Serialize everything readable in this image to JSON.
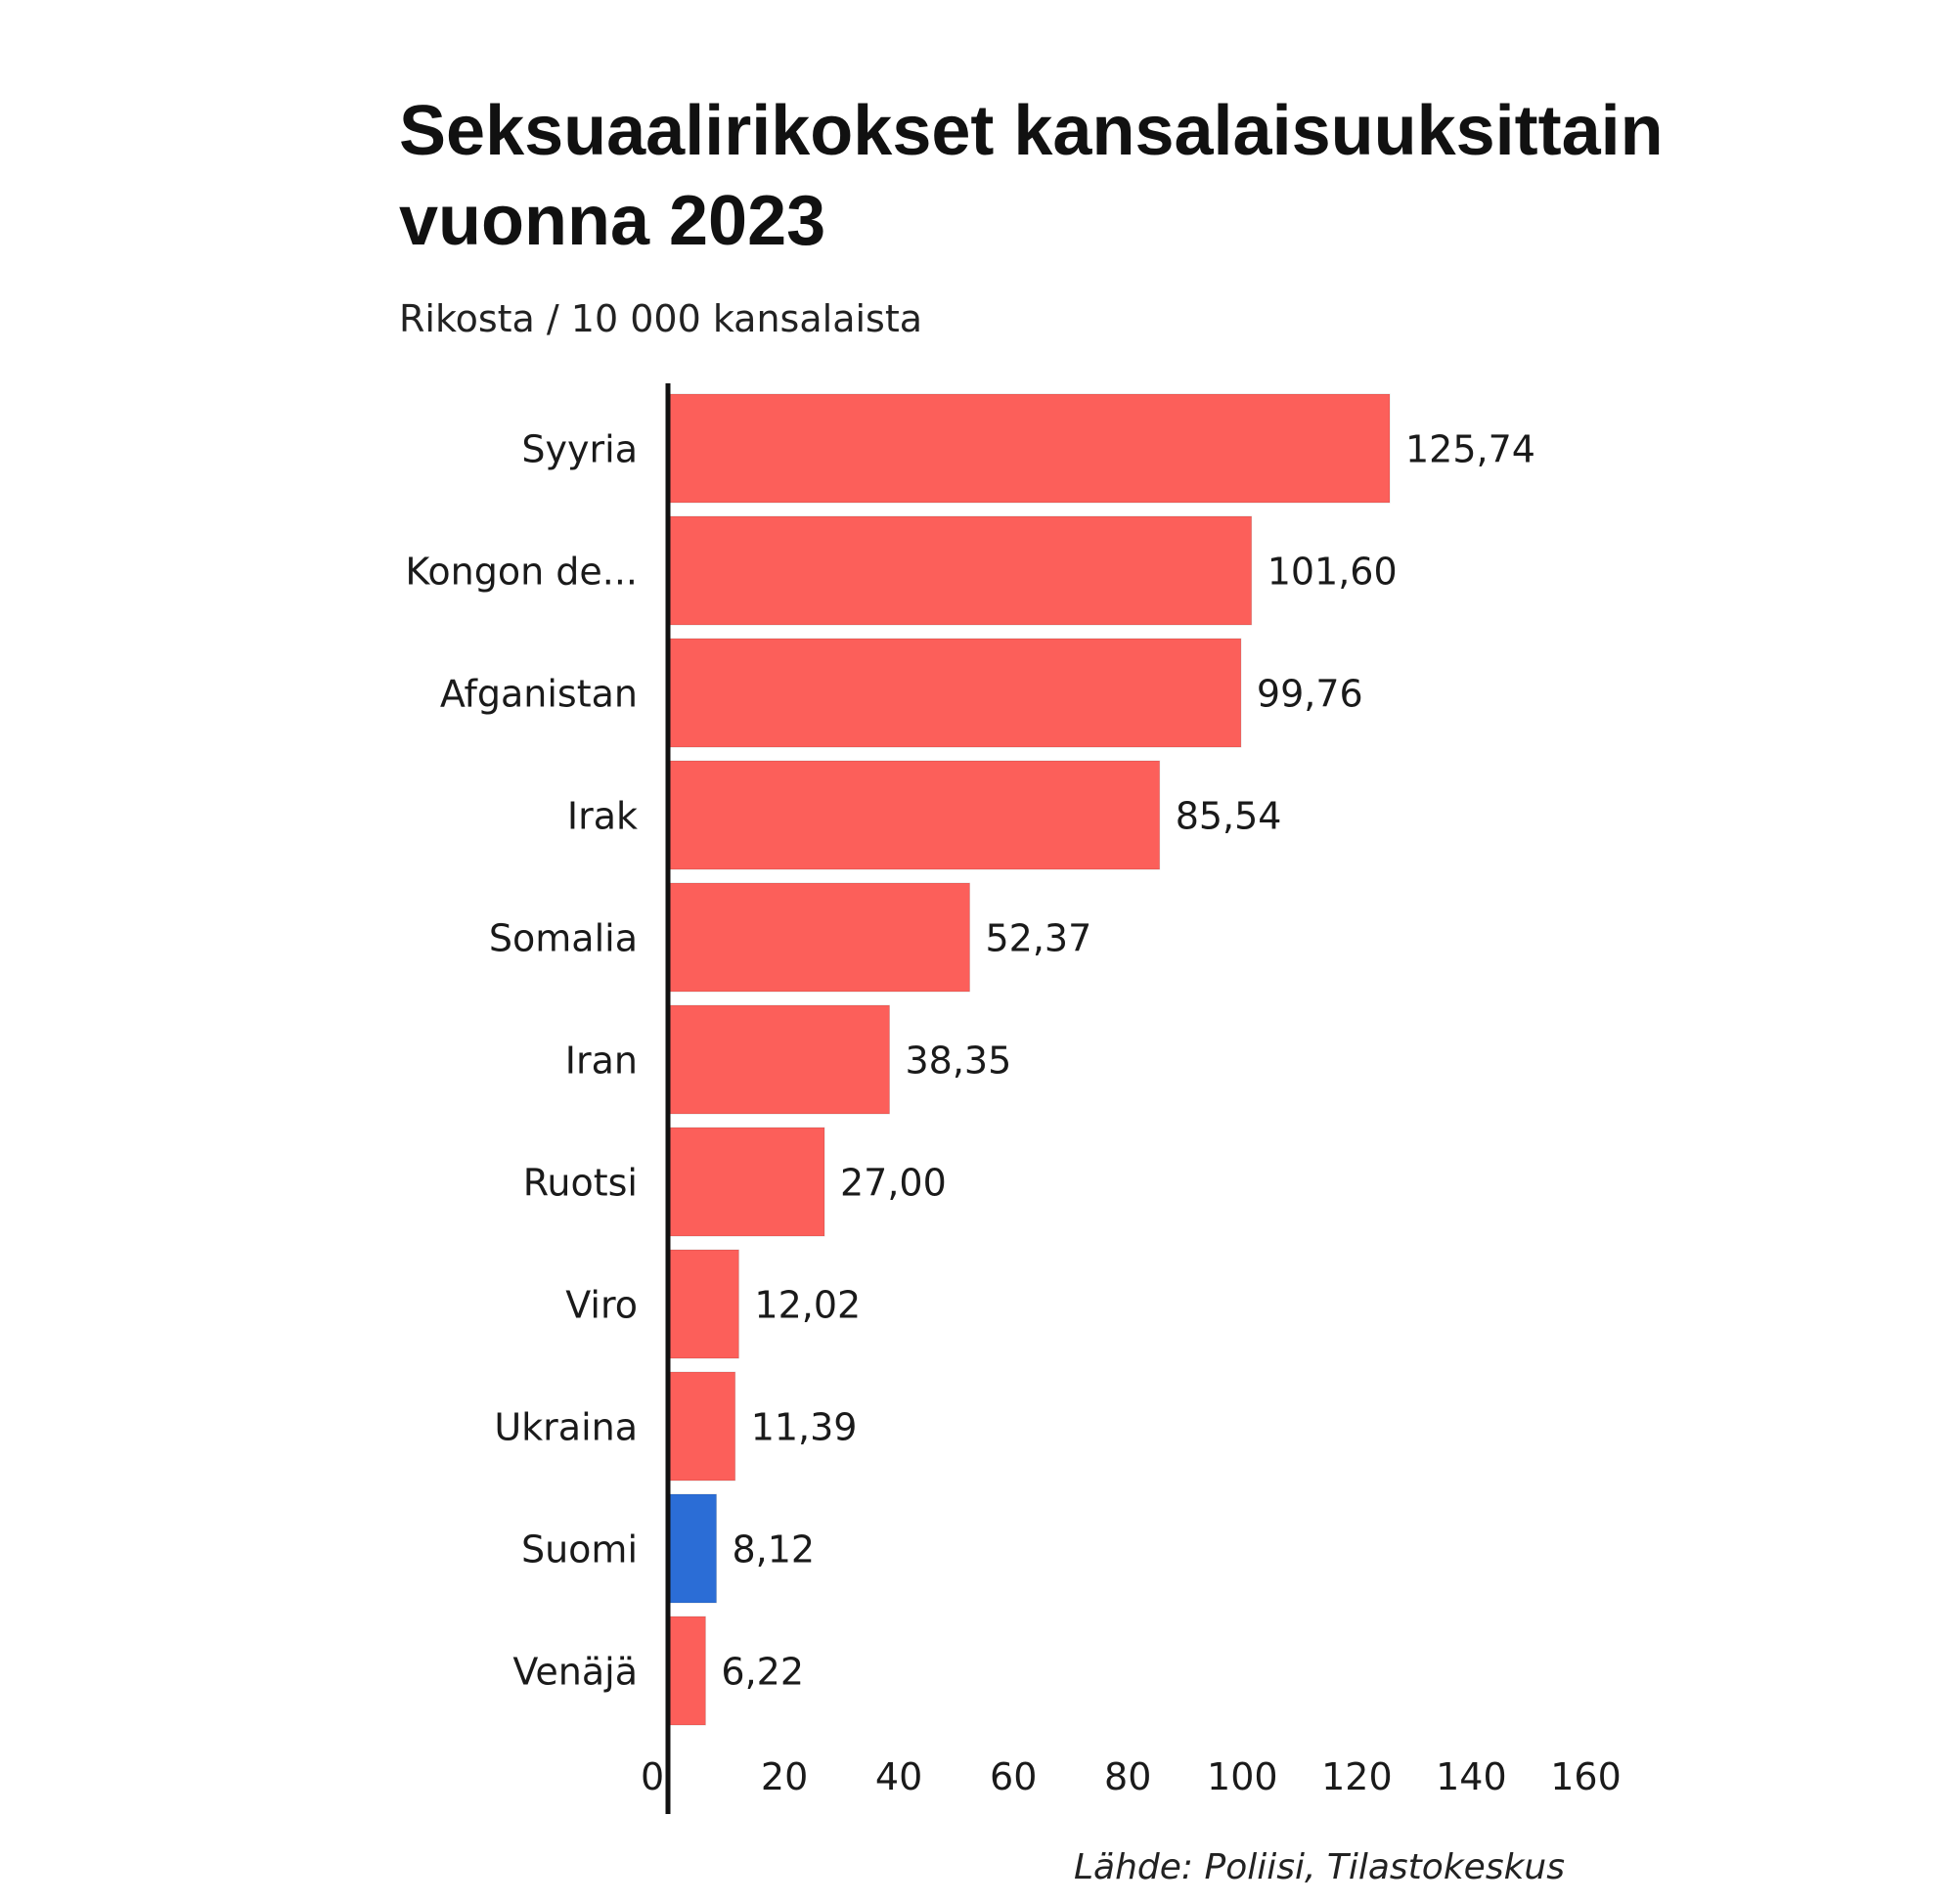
{
  "chart_data": {
    "type": "bar",
    "orientation": "horizontal",
    "title": "Seksuaalirikokset kansalaisuuksittain vuonna 2023",
    "subtitle": "Rikosta / 10 000 kansalaista",
    "categories": [
      "Syyria",
      "Kongon de...",
      "Afganistan",
      "Irak",
      "Somalia",
      "Iran",
      "Ruotsi",
      "Viro",
      "Ukraina",
      "Suomi",
      "Venäjä"
    ],
    "values": [
      125.74,
      101.6,
      99.76,
      85.54,
      52.37,
      38.35,
      27.0,
      12.02,
      11.39,
      8.12,
      6.22
    ],
    "value_labels": [
      "125,74",
      "101,60",
      "99,76",
      "85,54",
      "52,37",
      "38,35",
      "27,00",
      "12,02",
      "11,39",
      "8,12",
      "6,22"
    ],
    "x_ticks": [
      0,
      20,
      40,
      60,
      80,
      100,
      120,
      140,
      160
    ],
    "xlim": [
      0,
      160
    ],
    "grid": false,
    "colors": {
      "default": "#fc5f5a",
      "highlight": "#2b6dd6"
    },
    "highlight_category": "Suomi",
    "source": "Lähde: Poliisi, Tilastokeskus"
  }
}
